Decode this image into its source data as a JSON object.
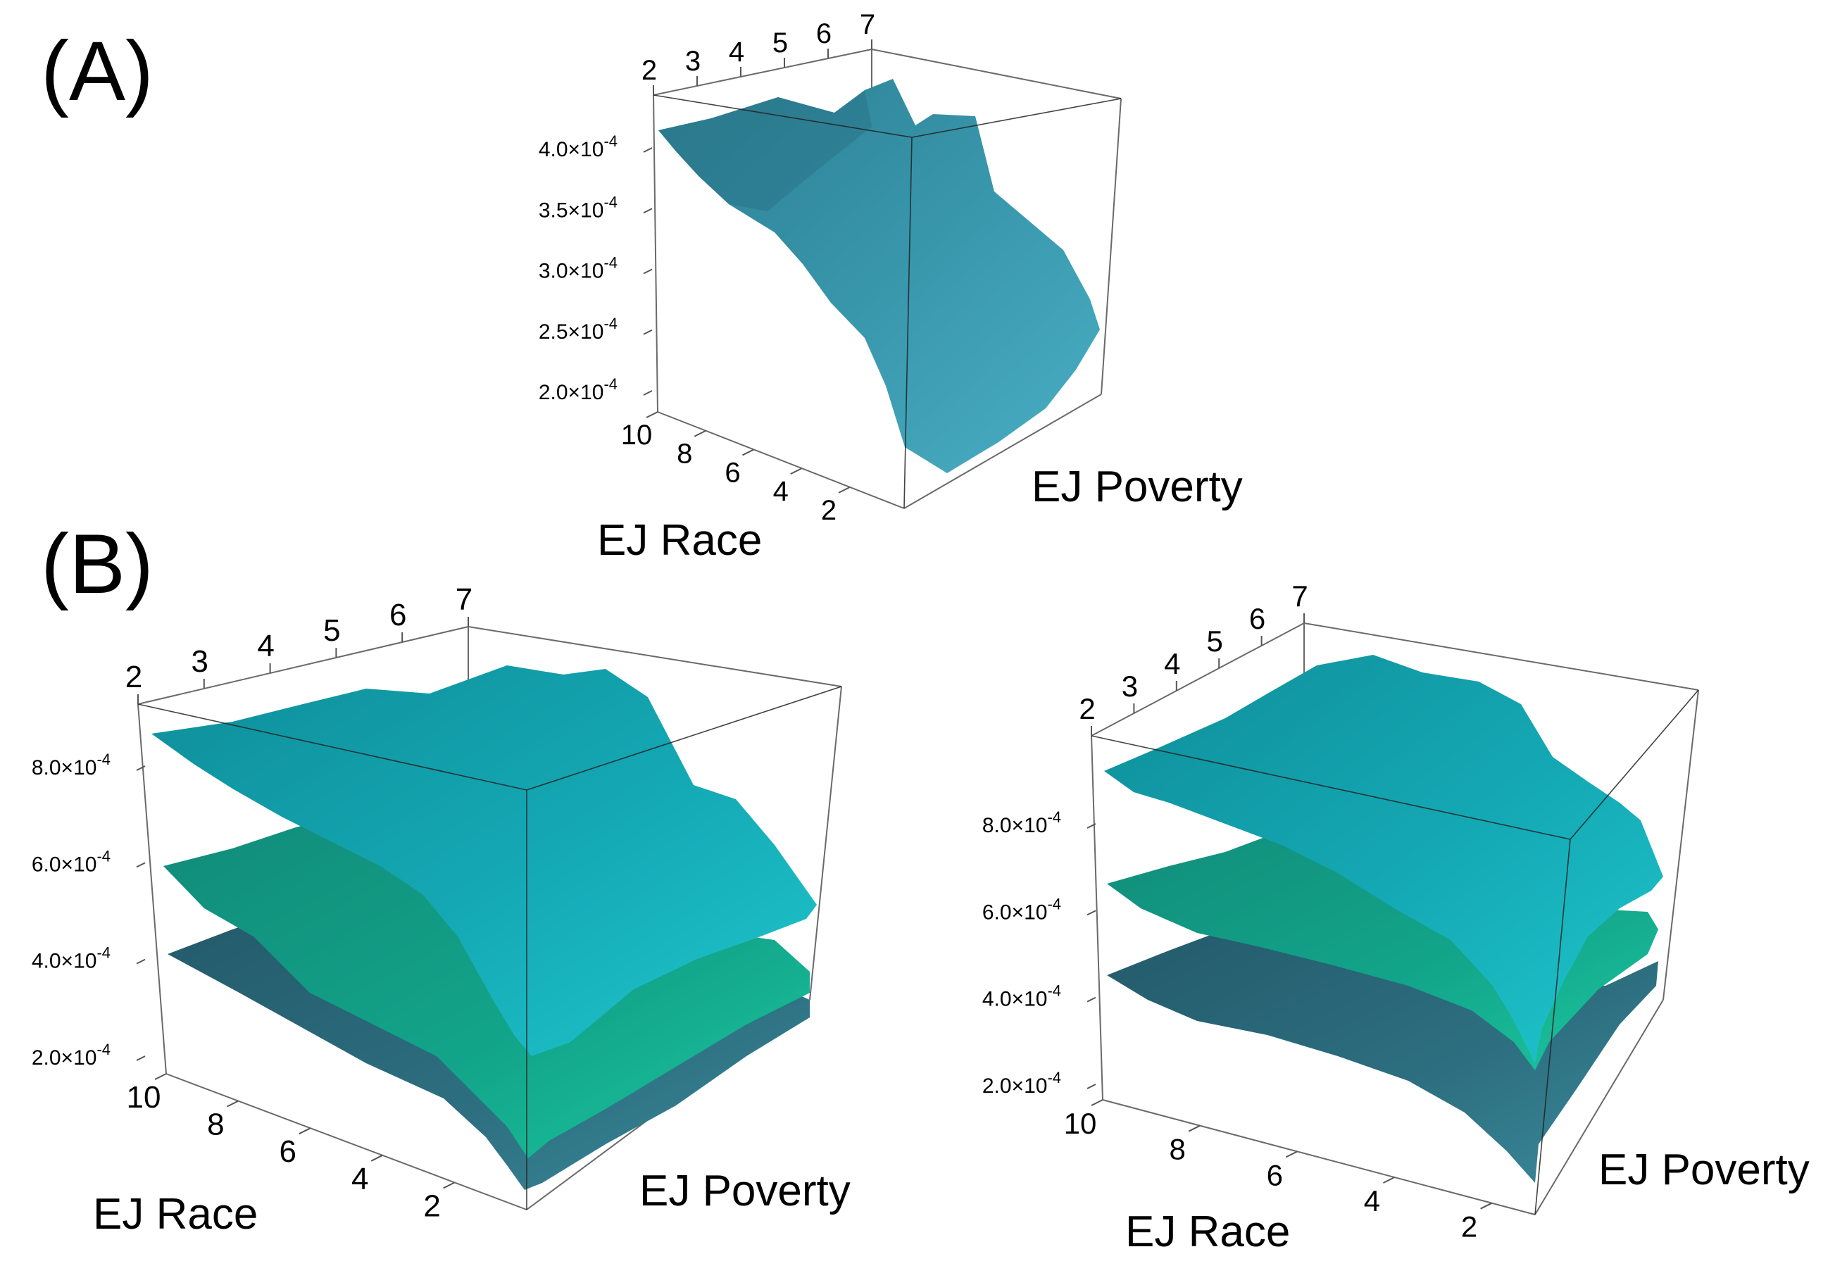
{
  "panels": {
    "a": {
      "label": "(A)"
    },
    "b": {
      "label": "(B)"
    }
  },
  "colors": {
    "surface_top": "#1aa5b3",
    "surface_middle": "#14a08a",
    "surface_bottom": "#2c6e7c",
    "surface_single": "#3a98ad",
    "box": "#6a6a6a"
  },
  "chart_data": [
    {
      "type": "surface3d",
      "panel": "(A)",
      "xlabel": "EJ Poverty",
      "ylabel": "EJ Race",
      "x_ticks": [
        "2",
        "3",
        "4",
        "5",
        "6",
        "7"
      ],
      "y_ticks": [
        "10",
        "8",
        "6",
        "4",
        "2"
      ],
      "z_ticks": [
        "2.0×10",
        "2.5×10",
        "3.0×10",
        "3.5×10",
        "4.0×10"
      ],
      "z_tick_exponent": "-4",
      "z_tick_values": [
        0.0002,
        0.00025,
        0.0003,
        0.00035,
        0.0004
      ],
      "xlim": [
        2,
        7
      ],
      "ylim": [
        1,
        10
      ],
      "zlim": [
        0.00019,
        0.00042
      ],
      "series": [
        {
          "values": [
            0.00041,
            0.00035,
            0.00028,
            0.0002
          ]
        }
      ]
    },
    {
      "type": "surface3d",
      "panel": "(B) left",
      "xlabel": "EJ Poverty",
      "ylabel": "EJ Race",
      "x_ticks": [
        "2",
        "3",
        "4",
        "5",
        "6",
        "7"
      ],
      "y_ticks": [
        "10",
        "8",
        "6",
        "4",
        "2"
      ],
      "z_ticks": [
        "2.0×10",
        "4.0×10",
        "6.0×10",
        "8.0×10"
      ],
      "z_tick_exponent": "-4",
      "z_tick_values": [
        0.0002,
        0.0004,
        0.0006,
        0.0008
      ],
      "xlim": [
        2,
        7
      ],
      "ylim": [
        1,
        10
      ],
      "zlim": [
        0.00015,
        0.00092
      ],
      "series": [
        {
          "values": [
            0.00085,
            0.00065,
            0.0004
          ]
        },
        {
          "values": [
            0.0006,
            0.00045,
            0.0003
          ]
        },
        {
          "values": [
            0.00043,
            0.00032,
            0.00022
          ]
        }
      ]
    },
    {
      "type": "surface3d",
      "panel": "(B) right",
      "xlabel": "EJ Poverty",
      "ylabel": "EJ Race",
      "x_ticks": [
        "2",
        "3",
        "4",
        "5",
        "6",
        "7"
      ],
      "y_ticks": [
        "10",
        "8",
        "6",
        "4",
        "2"
      ],
      "z_ticks": [
        "2.0×10",
        "4.0×10",
        "6.0×10",
        "8.0×10"
      ],
      "z_tick_exponent": "-4",
      "z_tick_values": [
        0.0002,
        0.0004,
        0.0006,
        0.0008
      ],
      "xlim": [
        2,
        7
      ],
      "ylim": [
        1,
        10
      ],
      "zlim": [
        0.00015,
        0.00092
      ],
      "series": [
        {
          "values": [
            0.00088,
            0.00068,
            0.00038
          ]
        },
        {
          "values": [
            0.00062,
            0.00046,
            0.00028
          ]
        },
        {
          "values": [
            0.00044,
            0.00033,
            0.0002
          ]
        }
      ]
    }
  ]
}
